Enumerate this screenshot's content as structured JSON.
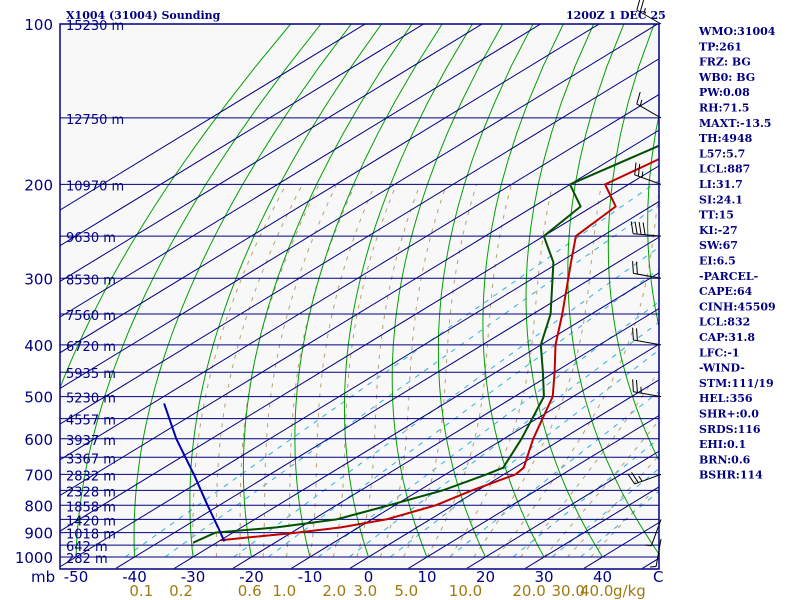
{
  "header": {
    "station": "X1004 (31004) Sounding",
    "time": "1200Z  1 DEC 25"
  },
  "indices": [
    "WMO:31004",
    "TP:261",
    "FRZ: BG",
    "WB0: BG",
    "PW:0.08",
    "RH:71.5",
    "MAXT:-13.5",
    "TH:4948",
    "L57:5.7",
    "LCL:887",
    "LI:31.7",
    "SI:24.1",
    "TT:15",
    "KI:-27",
    "SW:67",
    "EI:6.5",
    "-PARCEL-",
    "CAPE:64",
    "CINH:45509",
    "LCL:832",
    "CAP:31.8",
    "LFC:-1",
    "-WIND-",
    "STM:111/19",
    "HEL:356",
    "SHR+:0.0",
    "SRDS:116",
    "EHI:0.1",
    "BRN:0.6",
    "BSHR:114"
  ],
  "colors": {
    "frame": "#000080",
    "background": "#f8f8f8",
    "temperature": "#c00000",
    "dewpoint": "#005000",
    "dry_adiabat": "#00a000",
    "moist_adiabat": "#b8a070",
    "mixing_ratio": "#30b0e0",
    "parcel": "#0000b0",
    "wind": "#000000"
  },
  "chart_data": {
    "type": "line",
    "title": "X1004 (31004) Sounding",
    "subtitle": "1200Z  1 DEC 25",
    "xlabel": "mb",
    "ylabel": "",
    "grid": true,
    "xlim": [
      -50,
      50
    ],
    "ylim": [
      1000,
      100
    ],
    "pressure_levels": [
      100,
      200,
      300,
      400,
      500,
      600,
      700,
      800,
      900,
      1000
    ],
    "temperature_ticks": [
      -50,
      -40,
      -30,
      -20,
      -10,
      0,
      10,
      20,
      30,
      40
    ],
    "x_unit_label": "C",
    "mixing_ratio_labels": [
      "0.1",
      "0.2",
      "0.6",
      "1.0",
      "2.0",
      "3.0",
      "5.0",
      "10.0",
      "20.0",
      "30.0",
      "40.0"
    ],
    "mixing_ratio_values": [
      0.1,
      0.2,
      0.6,
      1.0,
      2.0,
      3.0,
      5.0,
      10.0,
      20.0,
      30.0,
      40.0
    ],
    "mixing_ratio_unit": "g/kg",
    "height_labels": [
      {
        "p": 100,
        "label": "15230 m"
      },
      {
        "p": 150,
        "label": "12750 m"
      },
      {
        "p": 200,
        "label": "10970 m"
      },
      {
        "p": 250,
        "label": "9630 m"
      },
      {
        "p": 300,
        "label": "8530 m"
      },
      {
        "p": 350,
        "label": "7560 m"
      },
      {
        "p": 400,
        "label": "6720 m"
      },
      {
        "p": 450,
        "label": "5935 m"
      },
      {
        "p": 500,
        "label": "5230 m"
      },
      {
        "p": 550,
        "label": "4557 m"
      },
      {
        "p": 600,
        "label": "3937 m"
      },
      {
        "p": 650,
        "label": "3367 m"
      },
      {
        "p": 700,
        "label": "2832 m"
      },
      {
        "p": 750,
        "label": "2328 m"
      },
      {
        "p": 800,
        "label": "1858 m"
      },
      {
        "p": 850,
        "label": "1420 m"
      },
      {
        "p": 900,
        "label": "1018 m"
      },
      {
        "p": 950,
        "label": "642 m"
      },
      {
        "p": 1000,
        "label": "282 m"
      }
    ],
    "series": [
      {
        "name": "Temperature",
        "points": [
          {
            "p": 100,
            "t": -55
          },
          {
            "p": 150,
            "t": -58.5
          },
          {
            "p": 200,
            "t": -64
          },
          {
            "p": 220,
            "t": -56
          },
          {
            "p": 250,
            "t": -54.5
          },
          {
            "p": 280,
            "t": -48
          },
          {
            "p": 350,
            "t": -35
          },
          {
            "p": 400,
            "t": -27.5
          },
          {
            "p": 450,
            "t": -20
          },
          {
            "p": 500,
            "t": -13.5
          },
          {
            "p": 600,
            "t": -5
          },
          {
            "p": 680,
            "t": 1.5
          },
          {
            "p": 700,
            "t": 2
          },
          {
            "p": 750,
            "t": -1
          },
          {
            "p": 800,
            "t": -3
          },
          {
            "p": 850,
            "t": -7.5
          },
          {
            "p": 880,
            "t": -13
          },
          {
            "p": 900,
            "t": -19
          },
          {
            "p": 930,
            "t": -30
          }
        ]
      },
      {
        "name": "Dewpoint",
        "points": [
          {
            "p": 100,
            "t": -59
          },
          {
            "p": 150,
            "t": -62.5
          },
          {
            "p": 200,
            "t": -70
          },
          {
            "p": 220,
            "t": -62
          },
          {
            "p": 250,
            "t": -60
          },
          {
            "p": 280,
            "t": -51
          },
          {
            "p": 350,
            "t": -37
          },
          {
            "p": 400,
            "t": -30
          },
          {
            "p": 450,
            "t": -22
          },
          {
            "p": 500,
            "t": -15
          },
          {
            "p": 600,
            "t": -7
          },
          {
            "p": 680,
            "t": -2
          },
          {
            "p": 700,
            "t": -3
          },
          {
            "p": 750,
            "t": -6
          },
          {
            "p": 800,
            "t": -11
          },
          {
            "p": 850,
            "t": -16
          },
          {
            "p": 880,
            "t": -24
          },
          {
            "p": 900,
            "t": -33
          },
          {
            "p": 940,
            "t": -34
          }
        ]
      },
      {
        "name": "Parcel",
        "points": [
          {
            "p": 515,
            "t": -78
          },
          {
            "p": 600,
            "t": -66
          },
          {
            "p": 700,
            "t": -53
          },
          {
            "p": 800,
            "t": -42
          },
          {
            "p": 880,
            "t": -34
          },
          {
            "p": 935,
            "t": -29
          }
        ]
      }
    ],
    "wind_barbs": [
      {
        "p": 100,
        "dir": 300,
        "kt": 25
      },
      {
        "p": 150,
        "dir": 300,
        "kt": 15
      },
      {
        "p": 200,
        "dir": 290,
        "kt": 25
      },
      {
        "p": 250,
        "dir": 275,
        "kt": 40
      },
      {
        "p": 300,
        "dir": 280,
        "kt": 20
      },
      {
        "p": 400,
        "dir": 280,
        "kt": 20
      },
      {
        "p": 500,
        "dir": 280,
        "kt": 25
      },
      {
        "p": 700,
        "dir": 250,
        "kt": 25
      },
      {
        "p": 850,
        "dir": 200,
        "kt": 5
      },
      {
        "p": 925,
        "dir": 190,
        "kt": 5
      }
    ]
  }
}
